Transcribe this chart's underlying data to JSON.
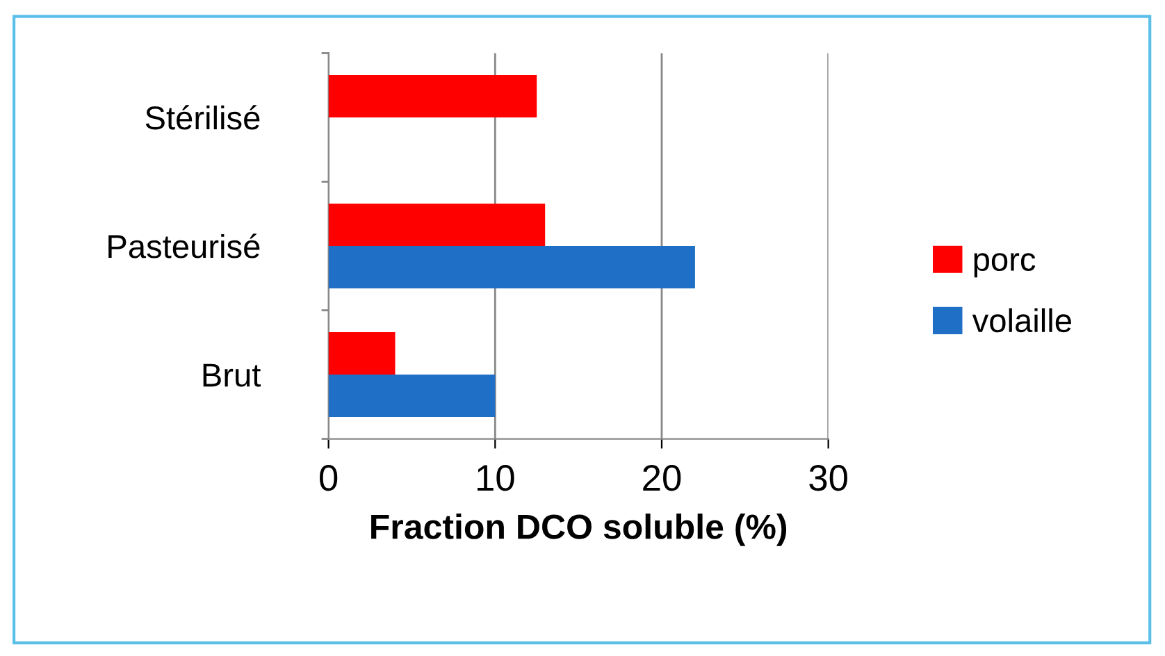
{
  "chart_data": {
    "type": "bar",
    "orientation": "horizontal",
    "xlabel": "Fraction DCO soluble (%)",
    "categories": [
      "Stérilisé",
      "Pasteurisé",
      "Brut"
    ],
    "series": [
      {
        "name": "porc",
        "color": "#ff0000",
        "values": [
          12.5,
          13,
          4
        ]
      },
      {
        "name": "volaille",
        "color": "#1f6fc6",
        "values": [
          null,
          22,
          10
        ]
      }
    ],
    "xlim": [
      0,
      30
    ],
    "xticks": [
      0,
      10,
      20,
      30
    ],
    "grid": "x",
    "legend": "right"
  }
}
